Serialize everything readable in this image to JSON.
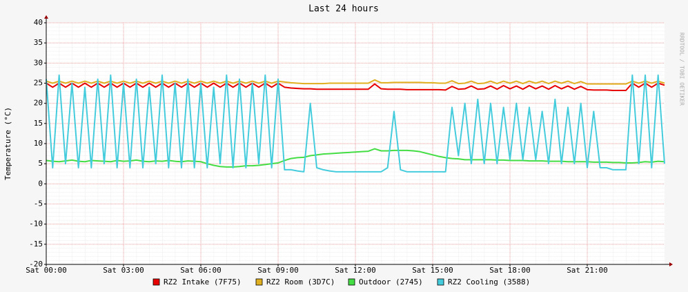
{
  "chart_data": {
    "type": "line",
    "title": "Last 24 hours",
    "y_label": "Temperature (°C)",
    "side_text": "RRDTOOL / TOBI OETIKER",
    "x": [
      0,
      0.25,
      0.5,
      0.75,
      1,
      1.25,
      1.5,
      1.75,
      2,
      2.25,
      2.5,
      2.75,
      3,
      3.25,
      3.5,
      3.75,
      4,
      4.25,
      4.5,
      4.75,
      5,
      5.25,
      5.5,
      5.75,
      6,
      6.25,
      6.5,
      6.75,
      7,
      7.25,
      7.5,
      7.75,
      8,
      8.25,
      8.5,
      8.75,
      9,
      9.25,
      9.5,
      9.75,
      10,
      10.25,
      10.5,
      10.75,
      11,
      11.25,
      11.5,
      11.75,
      12,
      12.25,
      12.5,
      12.75,
      13,
      13.25,
      13.5,
      13.75,
      14,
      14.25,
      14.5,
      14.75,
      15,
      15.25,
      15.5,
      15.75,
      16,
      16.25,
      16.5,
      16.75,
      17,
      17.25,
      17.5,
      17.75,
      18,
      18.25,
      18.5,
      18.75,
      19,
      19.25,
      19.5,
      19.75,
      20,
      20.25,
      20.5,
      20.75,
      21,
      21.25,
      21.5,
      21.75,
      22,
      22.25,
      22.5,
      22.75,
      23,
      23.25,
      23.5,
      23.75,
      24
    ],
    "xlim": [
      0,
      24
    ],
    "xticks": [
      {
        "value": 0,
        "label": "Sat 00:00"
      },
      {
        "value": 3,
        "label": "Sat 03:00"
      },
      {
        "value": 6,
        "label": "Sat 06:00"
      },
      {
        "value": 9,
        "label": "Sat 09:00"
      },
      {
        "value": 12,
        "label": "Sat 12:00"
      },
      {
        "value": 15,
        "label": "Sat 15:00"
      },
      {
        "value": 18,
        "label": "Sat 18:00"
      },
      {
        "value": 21,
        "label": "Sat 21:00"
      }
    ],
    "ylim": [
      -20,
      40
    ],
    "yticks": [
      -20,
      -15,
      -10,
      -5,
      0,
      5,
      10,
      15,
      20,
      25,
      30,
      35,
      40
    ],
    "grid": true,
    "series": [
      {
        "name": "RZ2 Intake (7F75)",
        "color": "#e80000",
        "values": [
          25,
          24,
          25,
          24,
          25,
          24,
          25,
          24,
          25,
          24,
          25,
          24,
          25,
          24,
          25,
          24,
          25,
          24,
          25,
          24,
          25,
          24,
          25,
          24,
          25,
          24,
          25,
          24,
          25,
          24,
          25,
          24,
          25,
          24,
          25,
          24,
          25,
          24,
          23.8,
          23.7,
          23.6,
          23.6,
          23.5,
          23.5,
          23.5,
          23.5,
          23.5,
          23.5,
          23.5,
          23.5,
          23.5,
          24.8,
          23.6,
          23.5,
          23.5,
          23.5,
          23.4,
          23.4,
          23.4,
          23.4,
          23.4,
          23.4,
          23.3,
          24.2,
          23.5,
          23.6,
          24.3,
          23.5,
          23.6,
          24.3,
          23.5,
          24.4,
          23.6,
          24.3,
          23.5,
          24.4,
          23.6,
          24.3,
          23.5,
          24.4,
          23.6,
          24.3,
          23.5,
          24.2,
          23.4,
          23.3,
          23.3,
          23.3,
          23.2,
          23.2,
          23.2,
          25,
          24,
          25,
          24,
          25,
          24.5
        ]
      },
      {
        "name": "RZ2 Room (3D7C)",
        "color": "#e0b020",
        "values": [
          25.5,
          25,
          25.5,
          25,
          25.5,
          25,
          25.5,
          25,
          25.5,
          25,
          25.5,
          25,
          25.5,
          25,
          25.5,
          25,
          25.5,
          25,
          25.5,
          25,
          25.5,
          25,
          25.5,
          25,
          25.5,
          25,
          25.5,
          25,
          25.5,
          25,
          25.5,
          25,
          25.5,
          25,
          25.5,
          25,
          25.5,
          25.3,
          25.1,
          25,
          24.9,
          24.9,
          24.9,
          24.9,
          25,
          25,
          25,
          25,
          25,
          25,
          25,
          25.8,
          25.1,
          25.1,
          25.2,
          25.2,
          25.2,
          25.2,
          25.2,
          25.1,
          25.1,
          25,
          25,
          25.6,
          24.9,
          25,
          25.5,
          24.9,
          25,
          25.5,
          24.9,
          25.5,
          25,
          25.5,
          24.9,
          25.5,
          25,
          25.5,
          24.9,
          25.5,
          25,
          25.5,
          24.9,
          25.4,
          24.8,
          24.8,
          24.8,
          24.8,
          24.8,
          24.8,
          24.8,
          25.5,
          25,
          25.5,
          25,
          25.5,
          25
        ]
      },
      {
        "name": "Outdoor (2745)",
        "color": "#44dd44",
        "values": [
          5.8,
          5.6,
          5.5,
          5.7,
          5.9,
          5.6,
          5.5,
          5.8,
          5.7,
          5.6,
          5.5,
          5.8,
          5.6,
          5.7,
          5.9,
          5.6,
          5.5,
          5.7,
          5.6,
          5.8,
          5.6,
          5.5,
          5.7,
          5.6,
          5.5,
          5,
          4.6,
          4.3,
          4.2,
          4.2,
          4.3,
          4.5,
          4.5,
          4.6,
          4.8,
          5,
          5.2,
          5.8,
          6.3,
          6.5,
          6.6,
          7,
          7.2,
          7.4,
          7.5,
          7.6,
          7.7,
          7.8,
          7.9,
          8,
          8.1,
          8.7,
          8.2,
          8.2,
          8.3,
          8.3,
          8.3,
          8.2,
          8,
          7.6,
          7.2,
          6.8,
          6.5,
          6.3,
          6.2,
          6,
          6,
          6,
          6,
          6,
          5.9,
          5.9,
          5.8,
          5.8,
          5.8,
          5.7,
          5.7,
          5.7,
          5.6,
          5.6,
          5.6,
          5.5,
          5.5,
          5.5,
          5.5,
          5.4,
          5.4,
          5.4,
          5.3,
          5.3,
          5.2,
          5.2,
          5.3,
          5.5,
          5.4,
          5.6,
          5.5
        ]
      },
      {
        "name": "RZ2 Cooling (3588)",
        "color": "#44ccdd",
        "values": [
          26,
          4,
          27,
          5,
          25,
          4,
          24,
          4,
          26,
          5,
          27,
          4,
          25,
          4,
          26,
          4,
          24,
          5,
          27,
          4,
          25,
          4,
          26,
          4,
          25,
          4,
          24,
          5,
          27,
          4,
          26,
          4,
          25,
          5,
          27,
          4,
          26,
          3.5,
          3.5,
          3.2,
          3,
          20,
          4,
          3.5,
          3.2,
          3,
          3,
          3,
          3,
          3,
          3,
          3,
          3,
          4,
          18,
          3.5,
          3,
          3,
          3,
          3,
          3,
          3,
          3,
          19,
          7,
          20,
          5,
          21,
          5,
          20,
          5,
          19,
          6,
          20,
          6,
          19,
          6,
          18,
          5,
          21,
          5,
          19,
          5,
          20,
          4,
          18,
          4,
          4,
          3.5,
          3.5,
          3.5,
          27,
          5,
          27,
          4,
          27,
          5
        ]
      }
    ]
  }
}
